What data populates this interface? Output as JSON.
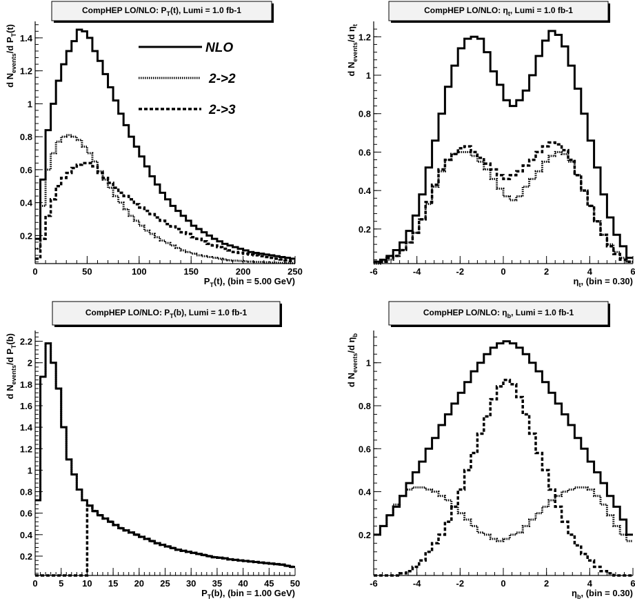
{
  "chart_data": [
    {
      "id": "pt_t",
      "type": "line",
      "title": [
        "CompHEP LO/NLO:  P",
        "T",
        "(t), Lumi =  1.0 fb-1"
      ],
      "xlabel": [
        "P",
        "T",
        "(t), (bin =  5.00 GeV)"
      ],
      "ylabel": [
        "d N",
        "events",
        "/d P",
        "T",
        "(t)"
      ],
      "xlim": [
        0,
        250
      ],
      "ylim": [
        0.03,
        1.5
      ],
      "xticks": [
        0,
        50,
        100,
        150,
        200,
        250
      ],
      "yticks": [
        0.2,
        0.4,
        0.6,
        0.8,
        1,
        1.2,
        1.4
      ],
      "bin_edges_start": 0,
      "bin_width": 5,
      "legend": {
        "position": "top-right",
        "entries": [
          "NLO",
          "2->2",
          "2->3"
        ]
      },
      "series": [
        {
          "name": "NLO",
          "style": "solid",
          "values": [
            0.18,
            0.54,
            0.84,
            1.0,
            1.14,
            1.24,
            1.32,
            1.38,
            1.45,
            1.44,
            1.4,
            1.32,
            1.26,
            1.18,
            1.1,
            1.02,
            0.94,
            0.87,
            0.8,
            0.74,
            0.68,
            0.62,
            0.56,
            0.51,
            0.46,
            0.42,
            0.38,
            0.35,
            0.32,
            0.29,
            0.26,
            0.24,
            0.22,
            0.2,
            0.18,
            0.165,
            0.15,
            0.14,
            0.13,
            0.12,
            0.11,
            0.1,
            0.095,
            0.09,
            0.085,
            0.08,
            0.075,
            0.07,
            0.065,
            0.06
          ]
        },
        {
          "name": "2->2",
          "style": "dotted",
          "values": [
            0.12,
            0.38,
            0.6,
            0.7,
            0.77,
            0.8,
            0.81,
            0.8,
            0.78,
            0.74,
            0.7,
            0.65,
            0.59,
            0.54,
            0.49,
            0.44,
            0.4,
            0.36,
            0.32,
            0.29,
            0.26,
            0.23,
            0.21,
            0.19,
            0.17,
            0.155,
            0.14,
            0.125,
            0.11,
            0.1,
            0.09,
            0.08,
            0.075,
            0.07,
            0.065,
            0.06,
            0.055,
            0.05,
            0.048,
            0.046,
            0.044,
            0.042,
            0.04,
            0.04,
            0.038,
            0.036,
            0.035,
            0.034,
            0.033,
            0.032
          ]
        },
        {
          "name": "2->3",
          "style": "dashed",
          "values": [
            0.06,
            0.18,
            0.32,
            0.42,
            0.5,
            0.55,
            0.58,
            0.61,
            0.63,
            0.64,
            0.64,
            0.62,
            0.58,
            0.55,
            0.52,
            0.49,
            0.46,
            0.44,
            0.42,
            0.39,
            0.37,
            0.35,
            0.33,
            0.31,
            0.29,
            0.27,
            0.255,
            0.24,
            0.22,
            0.21,
            0.19,
            0.18,
            0.165,
            0.15,
            0.14,
            0.13,
            0.12,
            0.11,
            0.1,
            0.095,
            0.09,
            0.085,
            0.08,
            0.075,
            0.07,
            0.065,
            0.06,
            0.055,
            0.05,
            0.045
          ]
        }
      ]
    },
    {
      "id": "eta_t",
      "type": "line",
      "title": [
        "CompHEP LO/NLO: η",
        "t",
        ", Lumi =  1.0 fb-1"
      ],
      "xlabel": [
        "η",
        "t",
        ", (bin =  0.30)"
      ],
      "ylabel": [
        "d N",
        "events",
        "/d η",
        "t",
        ""
      ],
      "xlim": [
        -6,
        6
      ],
      "ylim": [
        0.02,
        1.28
      ],
      "xticks": [
        -6,
        -4,
        -2,
        0,
        2,
        4,
        6
      ],
      "yticks": [
        0.2,
        0.4,
        0.6,
        0.8,
        1,
        1.2
      ],
      "bin_edges_start": -6,
      "bin_width": 0.3,
      "series": [
        {
          "name": "NLO",
          "style": "solid",
          "values": [
            0.03,
            0.04,
            0.06,
            0.09,
            0.13,
            0.19,
            0.27,
            0.38,
            0.52,
            0.66,
            0.8,
            0.94,
            1.05,
            1.14,
            1.19,
            1.2,
            1.19,
            1.12,
            1.02,
            0.95,
            0.87,
            0.84,
            0.87,
            0.92,
            1.0,
            1.1,
            1.18,
            1.23,
            1.21,
            1.15,
            1.05,
            0.93,
            0.8,
            0.66,
            0.52,
            0.38,
            0.26,
            0.17,
            0.11,
            0.05
          ]
        },
        {
          "name": "2->2",
          "style": "dotted",
          "values": [
            0.02,
            0.03,
            0.04,
            0.06,
            0.09,
            0.13,
            0.18,
            0.25,
            0.33,
            0.42,
            0.5,
            0.56,
            0.59,
            0.6,
            0.6,
            0.58,
            0.55,
            0.51,
            0.46,
            0.41,
            0.37,
            0.35,
            0.37,
            0.42,
            0.46,
            0.5,
            0.55,
            0.58,
            0.6,
            0.59,
            0.55,
            0.48,
            0.4,
            0.32,
            0.24,
            0.17,
            0.12,
            0.08,
            0.05,
            0.03
          ]
        },
        {
          "name": "2->3",
          "style": "dashed",
          "values": [
            0.03,
            0.03,
            0.05,
            0.06,
            0.09,
            0.13,
            0.18,
            0.25,
            0.34,
            0.43,
            0.51,
            0.56,
            0.59,
            0.62,
            0.63,
            0.6,
            0.57,
            0.54,
            0.51,
            0.48,
            0.46,
            0.48,
            0.5,
            0.53,
            0.56,
            0.6,
            0.63,
            0.65,
            0.64,
            0.61,
            0.56,
            0.48,
            0.4,
            0.32,
            0.24,
            0.17,
            0.11,
            0.07,
            0.04,
            0.03
          ]
        }
      ]
    },
    {
      "id": "pt_b",
      "type": "line",
      "title": [
        "CompHEP LO/NLO:  P",
        "T",
        "(b), Lumi =  1.0 fb-1"
      ],
      "xlabel": [
        "P",
        "T",
        "(b), (bin =  1.00 GeV)"
      ],
      "ylabel": [
        "d N",
        "events",
        "/d P",
        "T",
        "(b)"
      ],
      "xlim": [
        0,
        50
      ],
      "ylim": [
        0.02,
        2.3
      ],
      "xticks": [
        0,
        5,
        10,
        15,
        20,
        25,
        30,
        35,
        40,
        45,
        50
      ],
      "yticks": [
        0.2,
        0.4,
        0.6,
        0.8,
        1,
        1.2,
        1.4,
        1.6,
        1.8,
        2,
        2.2
      ],
      "bin_edges_start": 0,
      "bin_width": 1,
      "series": [
        {
          "name": "NLO",
          "style": "solid",
          "values": [
            0.72,
            1.87,
            2.18,
            2.0,
            1.76,
            1.4,
            1.1,
            0.96,
            0.82,
            0.72,
            0.67,
            0.62,
            0.58,
            0.55,
            0.52,
            0.49,
            0.46,
            0.44,
            0.42,
            0.4,
            0.38,
            0.36,
            0.34,
            0.32,
            0.305,
            0.29,
            0.275,
            0.26,
            0.25,
            0.24,
            0.23,
            0.22,
            0.21,
            0.2,
            0.19,
            0.185,
            0.18,
            0.17,
            0.165,
            0.16,
            0.155,
            0.15,
            0.145,
            0.14,
            0.135,
            0.13,
            0.125,
            0.12,
            0.11,
            0.1
          ]
        },
        {
          "name": "2->2",
          "style": "dotted",
          "values": [
            0.72,
            1.87,
            2.18,
            2.0,
            1.76,
            1.4,
            1.1,
            0.96,
            0.82,
            0.72,
            0.67,
            0.62,
            0.58,
            0.55,
            0.52,
            0.49,
            0.46,
            0.44,
            0.42,
            0.4,
            0.38,
            0.36,
            0.34,
            0.32,
            0.305,
            0.29,
            0.275,
            0.26,
            0.25,
            0.24,
            0.23,
            0.22,
            0.21,
            0.2,
            0.19,
            0.185,
            0.18,
            0.17,
            0.165,
            0.16,
            0.155,
            0.15,
            0.145,
            0.14,
            0.135,
            0.13,
            0.125,
            0.12,
            0.11,
            0.1
          ]
        },
        {
          "name": "2->3",
          "style": "dashed",
          "values": [
            0.02,
            0.02,
            0.02,
            0.02,
            0.02,
            0.02,
            0.02,
            0.02,
            0.02,
            0.02,
            0.67,
            0.62,
            0.58,
            0.55,
            0.52,
            0.49,
            0.46,
            0.44,
            0.42,
            0.4,
            0.38,
            0.36,
            0.34,
            0.32,
            0.305,
            0.29,
            0.275,
            0.26,
            0.25,
            0.24,
            0.23,
            0.22,
            0.21,
            0.2,
            0.19,
            0.185,
            0.18,
            0.17,
            0.165,
            0.16,
            0.155,
            0.15,
            0.145,
            0.14,
            0.135,
            0.13,
            0.125,
            0.12,
            0.11,
            0.1
          ]
        }
      ]
    },
    {
      "id": "eta_b",
      "type": "line",
      "title": [
        "CompHEP LO/NLO: η",
        "b",
        ", Lumi =  1.0 fb-1"
      ],
      "xlabel": [
        "η",
        "b",
        ", (bin =  0.30)"
      ],
      "ylabel": [
        "d N",
        "events",
        "/d η",
        "b",
        ""
      ],
      "xlim": [
        -6,
        6
      ],
      "ylim": [
        0.01,
        1.15
      ],
      "xticks": [
        -6,
        -4,
        -2,
        0,
        2,
        4,
        6
      ],
      "yticks": [
        0.2,
        0.4,
        0.6,
        0.8,
        1
      ],
      "bin_edges_start": -6,
      "bin_width": 0.3,
      "series": [
        {
          "name": "NLO",
          "style": "solid",
          "values": [
            0.2,
            0.24,
            0.29,
            0.33,
            0.38,
            0.44,
            0.49,
            0.54,
            0.6,
            0.65,
            0.71,
            0.76,
            0.81,
            0.86,
            0.91,
            0.96,
            1.0,
            1.04,
            1.07,
            1.09,
            1.1,
            1.09,
            1.07,
            1.04,
            1.0,
            0.96,
            0.91,
            0.86,
            0.81,
            0.76,
            0.71,
            0.65,
            0.6,
            0.54,
            0.49,
            0.44,
            0.38,
            0.33,
            0.27,
            0.2
          ]
        },
        {
          "name": "2->2",
          "style": "dotted",
          "values": [
            0.2,
            0.24,
            0.29,
            0.34,
            0.38,
            0.41,
            0.42,
            0.42,
            0.41,
            0.4,
            0.38,
            0.36,
            0.33,
            0.3,
            0.27,
            0.24,
            0.21,
            0.2,
            0.18,
            0.17,
            0.18,
            0.2,
            0.21,
            0.24,
            0.27,
            0.3,
            0.33,
            0.36,
            0.38,
            0.4,
            0.41,
            0.42,
            0.42,
            0.41,
            0.38,
            0.34,
            0.29,
            0.24,
            0.2,
            0.17
          ]
        },
        {
          "name": "2->3",
          "style": "dashed",
          "values": [
            0.01,
            0.01,
            0.01,
            0.01,
            0.02,
            0.03,
            0.05,
            0.08,
            0.12,
            0.16,
            0.2,
            0.26,
            0.33,
            0.41,
            0.5,
            0.58,
            0.67,
            0.75,
            0.83,
            0.89,
            0.92,
            0.9,
            0.84,
            0.76,
            0.67,
            0.58,
            0.5,
            0.41,
            0.33,
            0.26,
            0.2,
            0.15,
            0.11,
            0.08,
            0.05,
            0.03,
            0.02,
            0.01,
            0.01,
            0.01
          ]
        }
      ]
    }
  ]
}
